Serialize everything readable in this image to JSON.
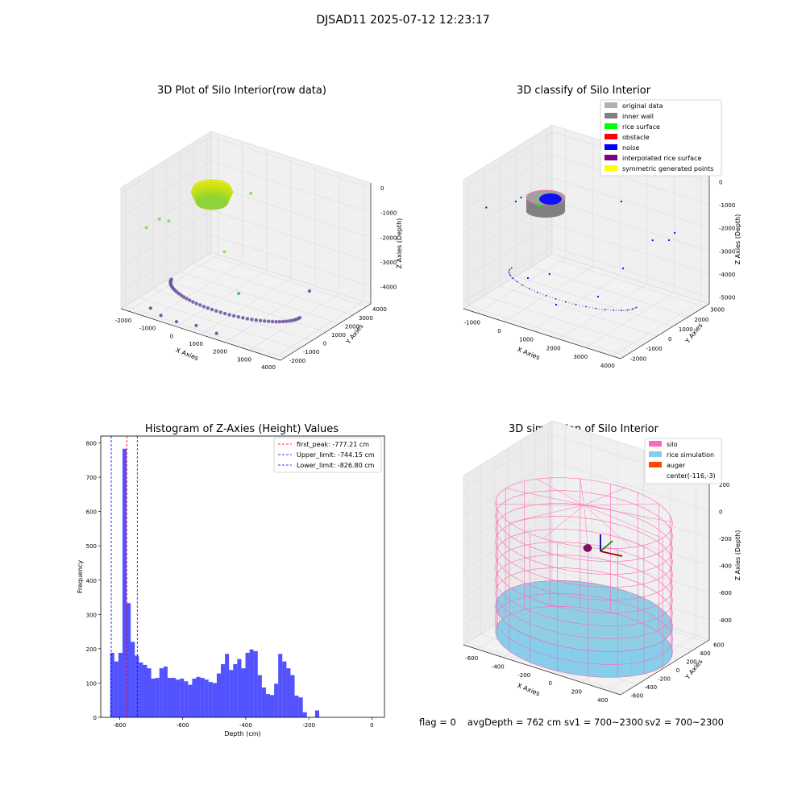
{
  "figure": {
    "suptitle": "DJSAD11 2025-07-12 12:23:17",
    "status": {
      "flag": "flag = 0",
      "avg_depth": "avgDepth = 762 cm",
      "sv1": "sv1 = 700~2300",
      "sv2": "sv2 = 700~2300"
    }
  },
  "colors": {
    "original": "#b0b0b0",
    "inner_wall": "#808080",
    "rice_surface": "#00ff00",
    "obstacle": "#ff0000",
    "noise": "#0000ff",
    "interpolated": "#800080",
    "symmetric": "#ffff00",
    "silo": "#ff69b4",
    "rice_sim": "#87ceeb",
    "auger": "#ff4500",
    "hist_bar": "#0000ff"
  },
  "chart_data": [
    {
      "type": "scatter",
      "id": "raw",
      "title": "3D Plot of Silo Interior(row data)",
      "xlabel": "X Axies",
      "ylabel": "Y Axies",
      "zlabel": "Z Axies (Depth)",
      "x_ticks": [
        -2000,
        -1000,
        0,
        1000,
        2000,
        3000,
        4000
      ],
      "y_ticks": [
        -2000,
        -1000,
        0,
        1000,
        2000,
        3000,
        4000
      ],
      "z_ticks": [
        -4000,
        -3000,
        -2000,
        -1000,
        0
      ],
      "xlim": [
        -2300,
        4300
      ],
      "ylim": [
        -2300,
        4300
      ],
      "zlim": [
        -4700,
        200
      ],
      "points": [
        {
          "x": 300,
          "y": 2600,
          "z": -900
        },
        {
          "x": -1700,
          "y": -1500,
          "z": -1500
        },
        {
          "x": -1500,
          "y": -900,
          "z": -1300
        },
        {
          "x": 1700,
          "y": -1800,
          "z": -1300
        },
        {
          "x": 2400,
          "y": -2000,
          "z": -2700
        },
        {
          "x": -1000,
          "y": -1100,
          "z": -1150
        },
        {
          "x": 2500,
          "y": 3000,
          "z": -4300
        },
        {
          "x": 1600,
          "y": -2200,
          "z": -4500
        },
        {
          "x": 700,
          "y": -2100,
          "z": -4500
        },
        {
          "x": 0,
          "y": -2300,
          "z": -4500
        },
        {
          "x": -700,
          "y": -2200,
          "z": -4500
        },
        {
          "x": -1300,
          "y": -1900,
          "z": -4500
        }
      ],
      "surface_center": {
        "x": -100,
        "y": 0,
        "z": -800
      },
      "surface_radius": 600,
      "ring": {
        "center_x": 800,
        "center_y": 700,
        "radius": 2600,
        "z": -4300
      }
    },
    {
      "type": "scatter",
      "id": "classify",
      "title": "3D classify of Silo Interior",
      "xlabel": "X Axies",
      "ylabel": "Y Axies",
      "zlabel": "Z Axies (Depth)",
      "x_ticks": [
        -1000,
        0,
        1000,
        2000,
        3000,
        4000
      ],
      "y_ticks": [
        -2000,
        -1000,
        0,
        1000,
        2000,
        3000
      ],
      "z_ticks": [
        -5000,
        -4000,
        -3000,
        -2000,
        -1000,
        0
      ],
      "xlim": [
        -1500,
        4300
      ],
      "ylim": [
        -2300,
        3300
      ],
      "zlim": [
        -5300,
        300
      ],
      "legend": [
        "original data",
        "inner wall",
        "rice surface",
        "obstacle",
        "noise",
        "interpolated rice surface",
        "symmetric generated points"
      ],
      "noise_points": [
        {
          "x": -1300,
          "y": 1000,
          "z": -1800
        },
        {
          "x": 2500,
          "y": 2800,
          "z": -3000
        },
        {
          "x": 3200,
          "y": 3000,
          "z": -2500
        },
        {
          "x": -1300,
          "y": -1200,
          "z": -1300
        },
        {
          "x": 1500,
          "y": -2000,
          "z": -2800
        }
      ],
      "surface_center": {
        "x": -100,
        "y": 0,
        "z": -700
      },
      "surface_radius": 550,
      "ring": {
        "center_x": 1000,
        "center_y": 400,
        "radius": 2300,
        "z": -4600
      }
    },
    {
      "type": "bar",
      "id": "histogram",
      "title": "Histogram of Z-Axies (Height) Values",
      "xlabel": "Depth (cm)",
      "ylabel": "Frequency",
      "xlim": [
        -860,
        40
      ],
      "ylim": [
        0,
        820
      ],
      "x_ticks": [
        -800,
        -600,
        -400,
        -200,
        0
      ],
      "y_ticks": [
        0,
        100,
        200,
        300,
        400,
        500,
        600,
        700,
        800
      ],
      "bin_start": -830,
      "bin_width": 13.0,
      "values": [
        188,
        163,
        188,
        783,
        333,
        220,
        180,
        160,
        153,
        143,
        113,
        115,
        143,
        148,
        115,
        115,
        110,
        113,
        105,
        95,
        113,
        118,
        115,
        110,
        103,
        100,
        128,
        155,
        185,
        138,
        155,
        170,
        143,
        188,
        198,
        193,
        123,
        87,
        68,
        65,
        98,
        185,
        163,
        143,
        123,
        63,
        58,
        15,
        0,
        0,
        20
      ],
      "vlines": [
        {
          "label": "first_peak: -777.21 cm",
          "value": -777.21,
          "color": "#ff0000"
        },
        {
          "label": "Upper_limit: -744.15 cm",
          "value": -744.15,
          "color": "#0000ff"
        },
        {
          "label": "Lower_limit: -826.80 cm",
          "value": -826.8,
          "color": "#0000ff"
        }
      ]
    },
    {
      "type": "scatter",
      "id": "simulation",
      "title": "3D simulation of Silo Interior",
      "xlabel": "X Axies",
      "ylabel": "Y Axies",
      "zlabel": "Z Axies (Depth)",
      "x_ticks": [
        -600,
        -400,
        -200,
        0,
        200,
        400
      ],
      "y_ticks": [
        -600,
        -400,
        -200,
        0,
        200,
        400,
        600
      ],
      "z_ticks": [
        -800,
        -600,
        -400,
        -200,
        0,
        200
      ],
      "xlim": [
        -700,
        500
      ],
      "ylim": [
        -650,
        650
      ],
      "zlim": [
        -950,
        300
      ],
      "legend": [
        "silo",
        "rice simulation",
        "auger",
        "center(-116,-3)"
      ],
      "silo": {
        "radius": 600,
        "center_x": -116,
        "center_y": -3,
        "z_top": 0,
        "z_bottom": -950
      },
      "rice_level": -760
    }
  ]
}
